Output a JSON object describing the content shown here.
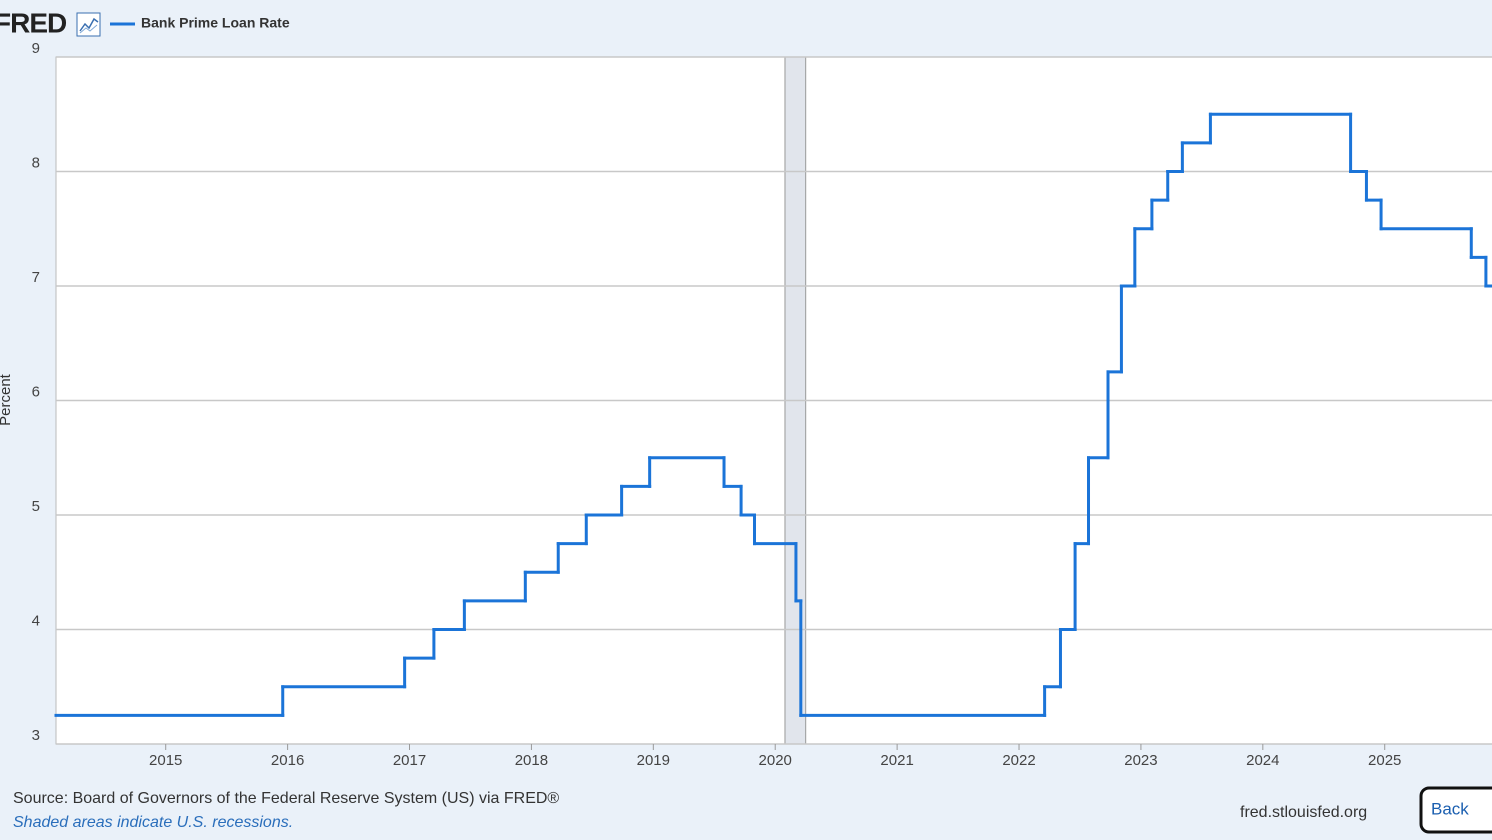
{
  "header": {
    "logo": "FRED"
  },
  "chart_data": {
    "type": "line",
    "step": true,
    "series": [
      {
        "name": "Bank Prime Loan Rate",
        "color": "#1b74d8",
        "x": [
          2014.1,
          2015.96,
          2016.96,
          2017.2,
          2017.45,
          2017.95,
          2018.22,
          2018.45,
          2018.74,
          2018.97,
          2019.58,
          2019.72,
          2019.83,
          2020.17,
          2020.21,
          2022.21,
          2022.34,
          2022.46,
          2022.57,
          2022.73,
          2022.84,
          2022.95,
          2023.09,
          2023.22,
          2023.34,
          2023.57,
          2024.72,
          2024.85,
          2024.97,
          2025.71,
          2025.83
        ],
        "values": [
          3.25,
          3.5,
          3.75,
          4,
          4.25,
          4.5,
          4.75,
          5,
          5.25,
          5.5,
          5.25,
          5,
          4.75,
          4.25,
          3.25,
          3.5,
          4,
          4.75,
          5.5,
          6.25,
          7,
          7.5,
          7.75,
          8,
          8.25,
          8.5,
          8,
          7.75,
          7.5,
          7.25,
          7
        ]
      }
    ],
    "ylabel": "Percent",
    "xlim": [
      2014.1,
      2025.88
    ],
    "ylim": [
      3,
      9
    ],
    "xticks": [
      2015,
      2016,
      2017,
      2018,
      2019,
      2020,
      2021,
      2022,
      2023,
      2024,
      2025
    ],
    "yticks": [
      3,
      4,
      5,
      6,
      7,
      8,
      9
    ],
    "grid": true,
    "recessions": [
      [
        2020.08,
        2020.25
      ]
    ]
  },
  "footer": {
    "source": "Source: Board of Governors of the Federal Reserve System (US) via FRED®",
    "note": "Shaded areas indicate U.S. recessions.",
    "site": "fred.stlouisfed.org",
    "button": "Back"
  }
}
